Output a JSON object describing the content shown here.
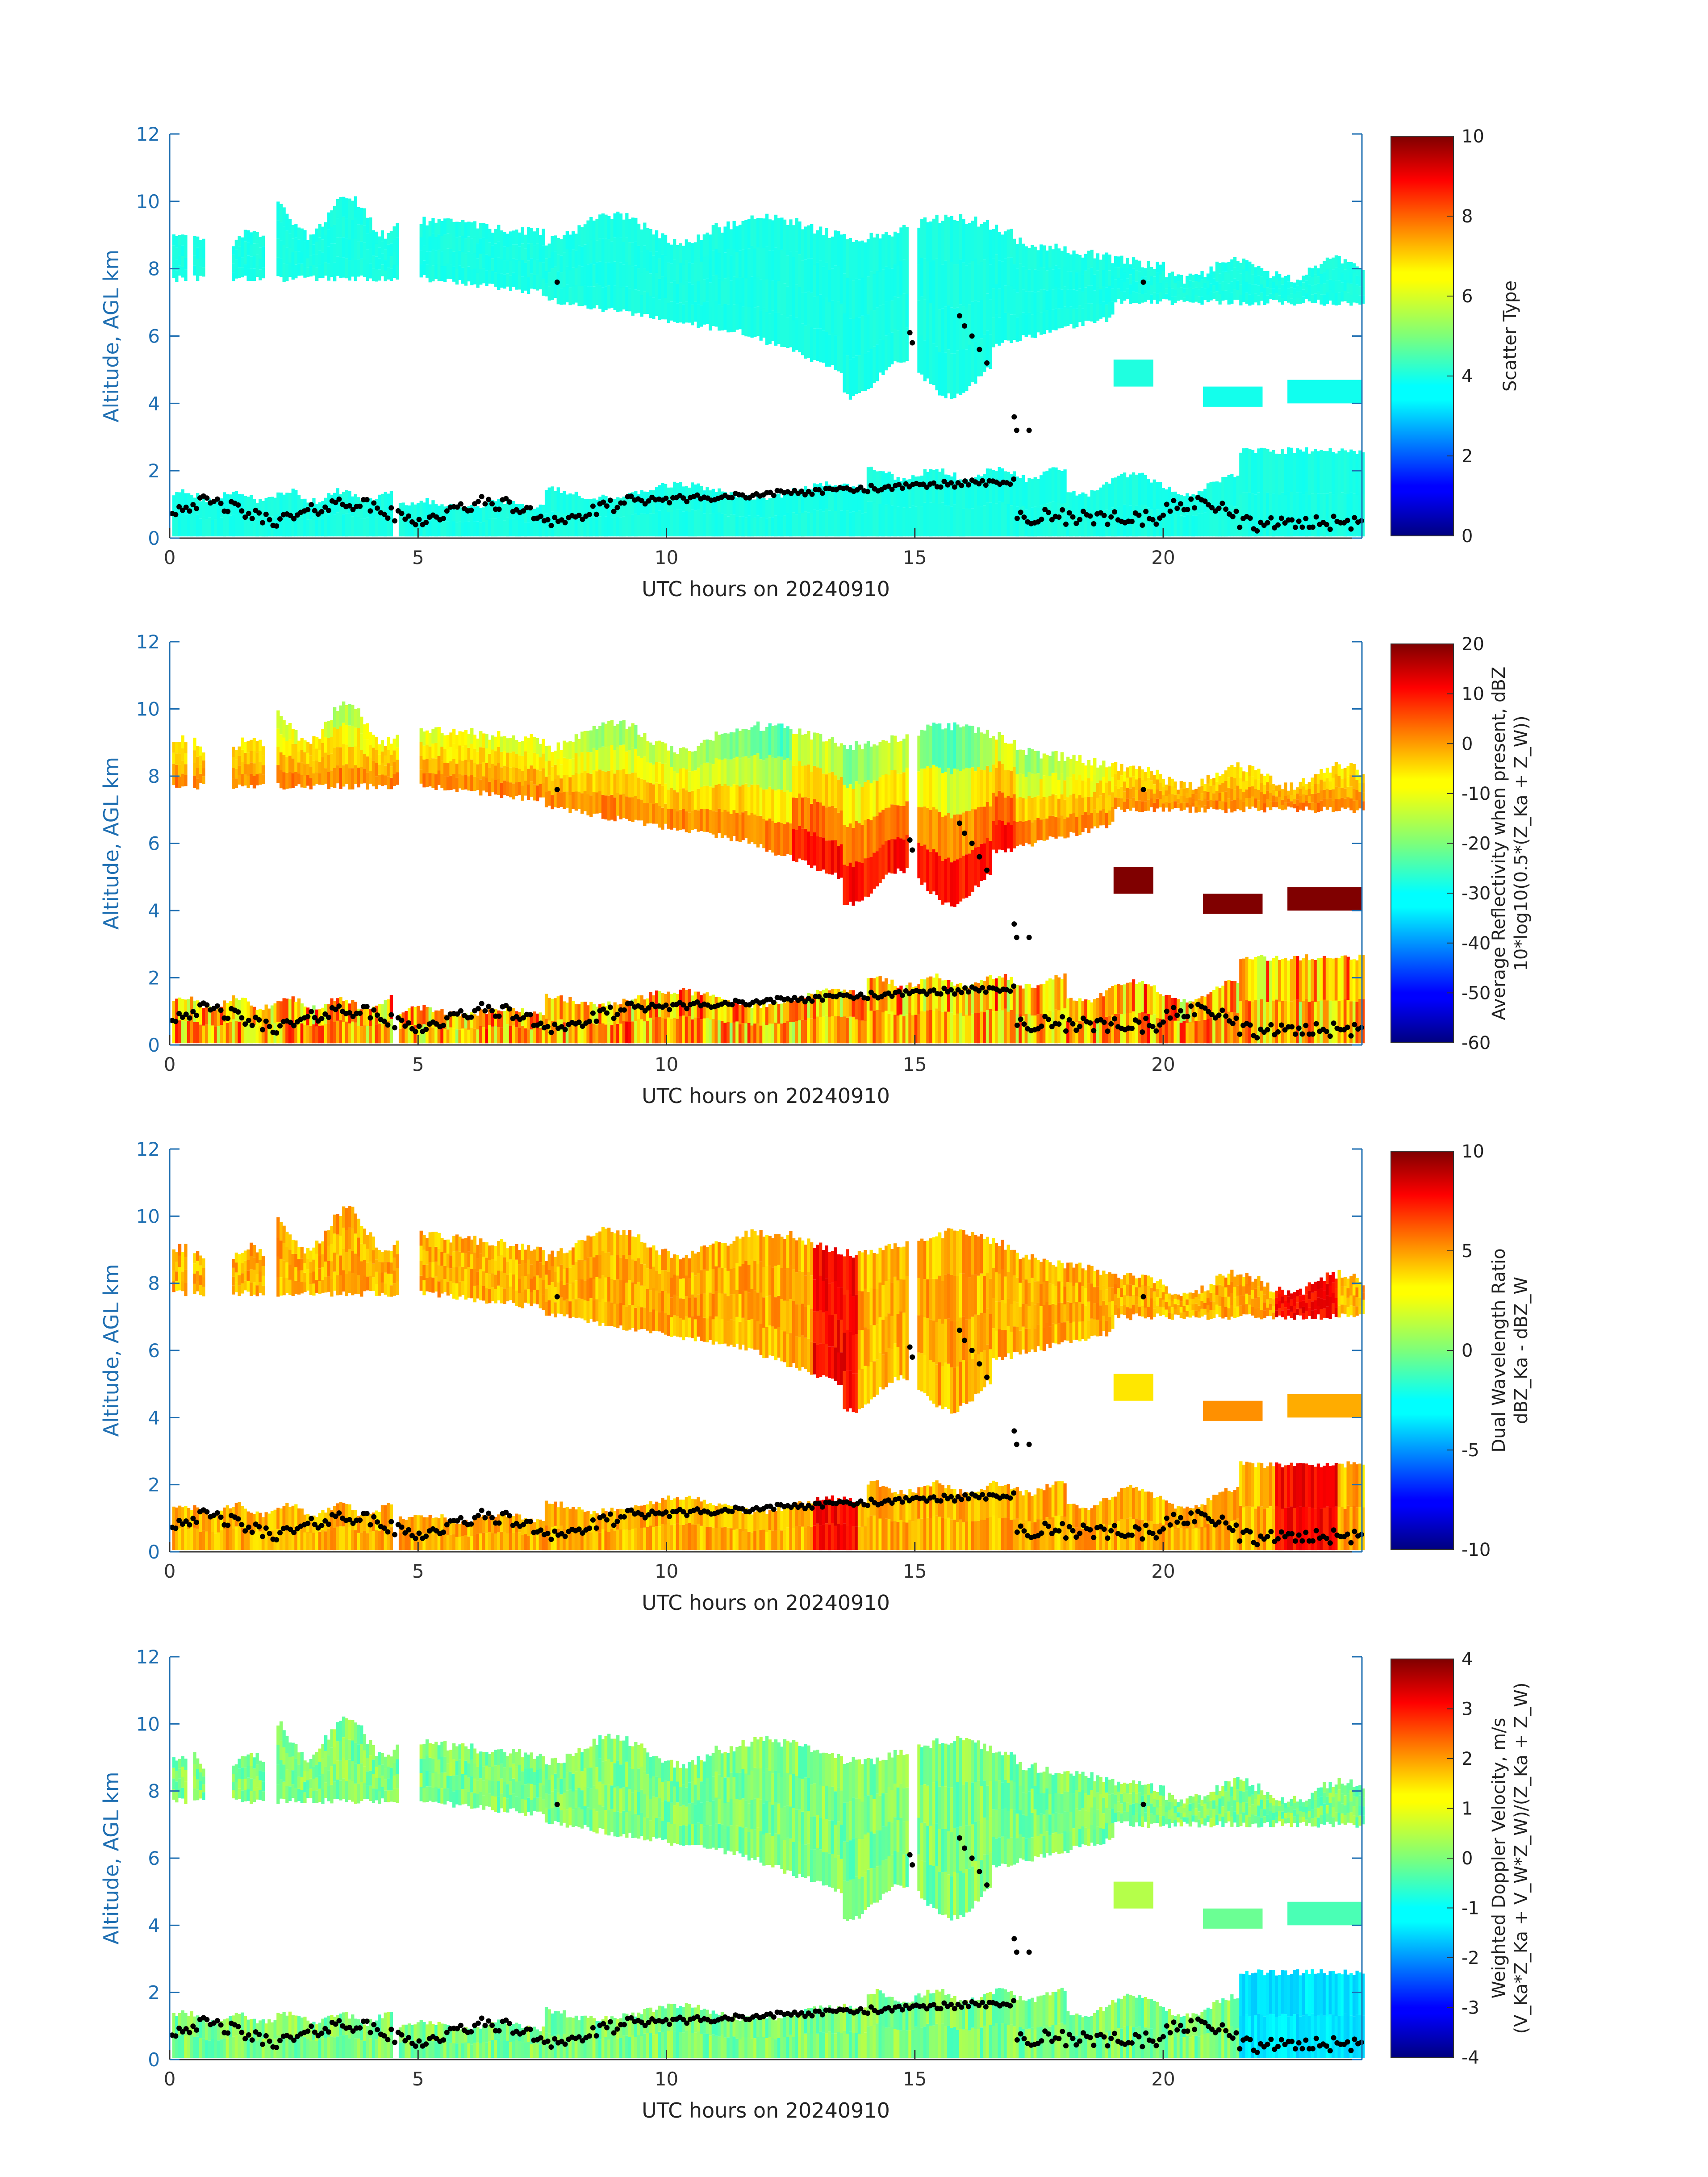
{
  "figure": {
    "colors": {
      "y_axis": "#1f6fb2",
      "frame": "#1f6fb2",
      "text": "#222222",
      "markers": "#000000"
    }
  },
  "chart_data": [
    {
      "type": "heatmap",
      "field": "scatter_type",
      "xlabel": "UTC hours on 20240910",
      "ylabel": "Altitude, AGL km",
      "xlim": [
        0,
        24
      ],
      "ylim": [
        0,
        12
      ],
      "xticks": [
        "0",
        "5",
        "10",
        "15",
        "20"
      ],
      "yticks": [
        "0",
        "2",
        "4",
        "6",
        "8",
        "10",
        "12"
      ],
      "colorbar": {
        "label_lines": [
          "Scatter Type"
        ],
        "ticks": [
          "0",
          "2",
          "4",
          "6",
          "8",
          "10"
        ],
        "range": [
          0,
          10
        ]
      },
      "dominant_value": 4
    },
    {
      "type": "heatmap",
      "field": "average_reflectivity",
      "xlabel": "UTC hours on 20240910",
      "ylabel": "Altitude, AGL km",
      "xlim": [
        0,
        24
      ],
      "ylim": [
        0,
        12
      ],
      "xticks": [
        "0",
        "5",
        "10",
        "15",
        "20"
      ],
      "yticks": [
        "0",
        "2",
        "4",
        "6",
        "8",
        "10",
        "12"
      ],
      "colorbar": {
        "label_lines": [
          "Average Reflectivity when present, dBZ",
          "10*log10(0.5*(Z_Ka + Z_W))"
        ],
        "ticks": [
          "-60",
          "-50",
          "-40",
          "-30",
          "-20",
          "-10",
          "0",
          "10",
          "20"
        ],
        "range": [
          -60,
          20
        ]
      }
    },
    {
      "type": "heatmap",
      "field": "dual_wavelength_ratio",
      "xlabel": "UTC hours on 20240910",
      "ylabel": "Altitude, AGL km",
      "xlim": [
        0,
        24
      ],
      "ylim": [
        0,
        12
      ],
      "xticks": [
        "0",
        "5",
        "10",
        "15",
        "20"
      ],
      "yticks": [
        "0",
        "2",
        "4",
        "6",
        "8",
        "10",
        "12"
      ],
      "colorbar": {
        "label_lines": [
          "Dual Wavelength Ratio",
          "dBZ_Ka - dBZ_W"
        ],
        "ticks": [
          "-10",
          "-5",
          "0",
          "5",
          "10"
        ],
        "range": [
          -10,
          10
        ]
      }
    },
    {
      "type": "heatmap",
      "field": "weighted_doppler_velocity",
      "xlabel": "UTC hours on 20240910",
      "ylabel": "Altitude, AGL km",
      "xlim": [
        0,
        24
      ],
      "ylim": [
        0,
        12
      ],
      "xticks": [
        "0",
        "5",
        "10",
        "15",
        "20"
      ],
      "yticks": [
        "0",
        "2",
        "4",
        "6",
        "8",
        "10",
        "12"
      ],
      "colorbar": {
        "label_lines": [
          "Weighted Doppler Velocity, m/s",
          "(V_Ka*Z_Ka + V_W*Z_W)/(Z_Ka + Z_W)"
        ],
        "ticks": [
          "-4",
          "-3",
          "-2",
          "-1",
          "0",
          "1",
          "2",
          "3",
          "4"
        ],
        "range": [
          -4,
          4
        ]
      }
    }
  ]
}
